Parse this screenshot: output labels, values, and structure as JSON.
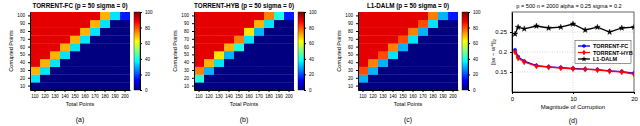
{
  "chart_data": [
    {
      "type": "heatmap",
      "title": "TORRENT-FC (p = 50 sigma = 0)",
      "x_label": "Total Points",
      "y_label": "Corrupted Points",
      "annotations": [
        "(a)"
      ],
      "x": [
        110,
        120,
        130,
        140,
        150,
        160,
        170,
        180,
        190,
        200
      ],
      "y": [
        10,
        20,
        30,
        40,
        50,
        60,
        70,
        80,
        90,
        100
      ],
      "cells": [
        [
          0,
          0,
          0,
          0,
          0,
          0,
          0,
          0,
          0,
          0
        ],
        [
          35,
          0,
          0,
          0,
          0,
          0,
          0,
          0,
          0,
          0
        ],
        [
          70,
          35,
          0,
          0,
          0,
          0,
          0,
          0,
          0,
          0
        ],
        [
          90,
          70,
          35,
          0,
          0,
          0,
          0,
          0,
          0,
          0
        ],
        [
          90,
          90,
          70,
          35,
          0,
          0,
          0,
          0,
          0,
          0
        ],
        [
          90,
          90,
          90,
          70,
          35,
          0,
          0,
          0,
          0,
          0
        ],
        [
          90,
          90,
          90,
          90,
          70,
          35,
          0,
          0,
          0,
          0
        ],
        [
          90,
          90,
          90,
          90,
          90,
          70,
          35,
          0,
          0,
          0
        ],
        [
          90,
          90,
          90,
          90,
          90,
          90,
          70,
          35,
          0,
          0
        ],
        [
          90,
          90,
          90,
          90,
          90,
          90,
          90,
          70,
          35,
          15
        ]
      ],
      "colorbar": {
        "range": [
          0,
          100
        ],
        "ticks": [
          0,
          20,
          40,
          60,
          80,
          100
        ]
      }
    },
    {
      "type": "heatmap",
      "title": "TORRENT-HYB (p = 50 sigma = 0)",
      "x_label": "Total Points",
      "y_label": "Corrupted Points",
      "annotations": [
        "(b)"
      ],
      "x": [
        110,
        120,
        130,
        140,
        150,
        160,
        170,
        180,
        190,
        200
      ],
      "y": [
        10,
        20,
        30,
        40,
        50,
        60,
        70,
        80,
        90,
        100
      ],
      "cells": [
        [
          0,
          0,
          0,
          0,
          0,
          0,
          0,
          0,
          0,
          0
        ],
        [
          40,
          0,
          0,
          0,
          0,
          0,
          0,
          0,
          0,
          0
        ],
        [
          75,
          30,
          0,
          0,
          0,
          0,
          0,
          0,
          0,
          0
        ],
        [
          90,
          70,
          35,
          0,
          0,
          0,
          0,
          0,
          0,
          0
        ],
        [
          90,
          90,
          65,
          30,
          0,
          0,
          0,
          0,
          0,
          0
        ],
        [
          90,
          90,
          90,
          70,
          40,
          0,
          0,
          0,
          0,
          0
        ],
        [
          90,
          90,
          90,
          90,
          75,
          35,
          0,
          0,
          0,
          0
        ],
        [
          90,
          90,
          90,
          90,
          90,
          65,
          30,
          0,
          0,
          0
        ],
        [
          90,
          90,
          90,
          90,
          90,
          90,
          70,
          35,
          0,
          0
        ],
        [
          90,
          90,
          90,
          90,
          90,
          90,
          90,
          75,
          40,
          15
        ]
      ],
      "colorbar": {
        "range": [
          0,
          100
        ],
        "ticks": [
          0,
          20,
          40,
          60,
          80,
          100
        ]
      }
    },
    {
      "type": "heatmap",
      "title": "L1-DALM (p = 50 sigma = 0)",
      "x_label": "Total Points",
      "y_label": "Corrupted Points",
      "annotations": [
        "(c)"
      ],
      "x": [
        110,
        120,
        130,
        140,
        150,
        160,
        170,
        180,
        190,
        200
      ],
      "y": [
        10,
        20,
        30,
        40,
        50,
        60,
        70,
        80,
        90,
        100
      ],
      "cells": [
        [
          0,
          0,
          0,
          0,
          0,
          0,
          0,
          0,
          0,
          0
        ],
        [
          30,
          0,
          0,
          0,
          0,
          0,
          0,
          0,
          0,
          0
        ],
        [
          80,
          30,
          0,
          0,
          0,
          0,
          0,
          0,
          0,
          0
        ],
        [
          90,
          75,
          30,
          0,
          0,
          0,
          0,
          0,
          0,
          0
        ],
        [
          90,
          90,
          80,
          35,
          0,
          0,
          0,
          0,
          0,
          0
        ],
        [
          90,
          90,
          90,
          75,
          30,
          0,
          0,
          0,
          0,
          0
        ],
        [
          90,
          90,
          90,
          90,
          80,
          35,
          0,
          0,
          0,
          0
        ],
        [
          90,
          90,
          90,
          90,
          90,
          75,
          30,
          0,
          0,
          0
        ],
        [
          90,
          90,
          90,
          90,
          90,
          90,
          80,
          35,
          0,
          0
        ],
        [
          90,
          90,
          90,
          90,
          90,
          90,
          90,
          75,
          30,
          15
        ]
      ],
      "colorbar": {
        "range": [
          0,
          100
        ],
        "ticks": [
          0,
          20,
          40,
          60,
          80,
          100
        ]
      }
    },
    {
      "type": "line",
      "title": "p = 500 n = 2000 alpha = 0.25 sigma = 0.2",
      "x_label": "Magnitude of Corruption",
      "y_label": "||w − w*||₂",
      "annotations": [
        "(d)"
      ],
      "x": [
        0.5,
        1,
        2,
        4,
        6,
        8,
        10,
        12,
        14,
        16,
        18,
        20
      ],
      "xlim": [
        0,
        20
      ],
      "xticks": [
        0,
        10,
        20
      ],
      "ylim": [
        0.1,
        0.3
      ],
      "yticks": [
        0.15,
        0.2,
        0.25
      ],
      "grid": true,
      "legend": "right",
      "series": [
        {
          "name": "TORRENT-FC",
          "color": "#0000ff",
          "marker": "circle",
          "values": [
            0.205,
            0.188,
            0.177,
            0.166,
            0.163,
            0.161,
            0.159,
            0.157,
            0.156,
            0.153,
            0.151,
            0.147
          ]
        },
        {
          "name": "TORRENT-HYB",
          "color": "#ff0000",
          "marker": "diamond",
          "values": [
            0.2,
            0.185,
            0.175,
            0.165,
            0.162,
            0.16,
            0.158,
            0.157,
            0.155,
            0.152,
            0.15,
            0.145
          ]
        },
        {
          "name": "L1-DALM",
          "color": "#000000",
          "marker": "star",
          "values": [
            0.245,
            0.262,
            0.258,
            0.265,
            0.26,
            0.262,
            0.27,
            0.255,
            0.262,
            0.25,
            0.26,
            0.262
          ]
        }
      ]
    }
  ]
}
